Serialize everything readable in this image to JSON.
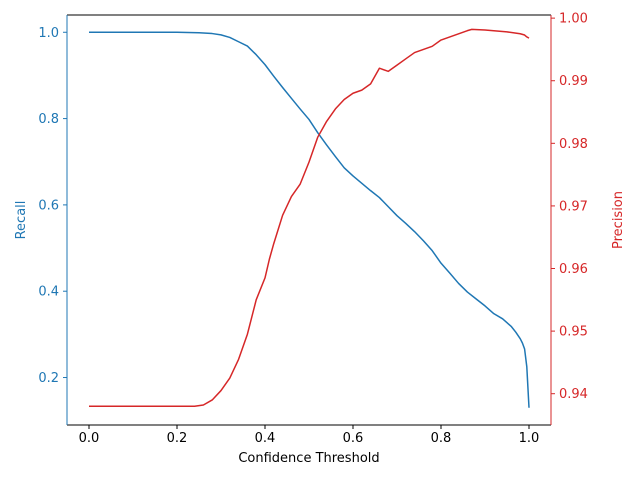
{
  "chart_data": {
    "type": "line",
    "xlabel": "Confidence Threshold",
    "ylabel_left": "Recall",
    "ylabel_right": "Precision",
    "xlim": [
      -0.05,
      1.05
    ],
    "ylim_left": [
      0.09,
      1.04
    ],
    "ylim_right": [
      0.935,
      1.0005
    ],
    "x_ticks": [
      0.0,
      0.2,
      0.4,
      0.6,
      0.8,
      1.0
    ],
    "x_tick_labels": [
      "0.0",
      "0.2",
      "0.4",
      "0.6",
      "0.8",
      "1.0"
    ],
    "left_ticks": [
      0.2,
      0.4,
      0.6,
      0.8,
      1.0
    ],
    "left_tick_labels": [
      "0.2",
      "0.4",
      "0.6",
      "0.8",
      "1.0"
    ],
    "right_ticks": [
      0.94,
      0.95,
      0.96,
      0.97,
      0.98,
      0.99,
      1.0
    ],
    "right_tick_labels": [
      "0.94",
      "0.95",
      "0.96",
      "0.97",
      "0.98",
      "0.99",
      "1.00"
    ],
    "grid": false,
    "colors": {
      "recall": "#1f77b4",
      "precision": "#d62728",
      "axis": "#000000"
    },
    "series": [
      {
        "axis": "left",
        "x": [
          0.0,
          0.1,
          0.2,
          0.25,
          0.28,
          0.3,
          0.32,
          0.34,
          0.36,
          0.38,
          0.4,
          0.42,
          0.44,
          0.46,
          0.48,
          0.5,
          0.52,
          0.54,
          0.56,
          0.58,
          0.6,
          0.62,
          0.64,
          0.66,
          0.68,
          0.7,
          0.72,
          0.74,
          0.76,
          0.78,
          0.8,
          0.82,
          0.84,
          0.86,
          0.88,
          0.9,
          0.92,
          0.94,
          0.95,
          0.96,
          0.97,
          0.98,
          0.985,
          0.99,
          0.995,
          1.0
        ],
        "y": [
          1.0,
          1.0,
          1.0,
          0.999,
          0.997,
          0.994,
          0.988,
          0.978,
          0.968,
          0.948,
          0.925,
          0.898,
          0.872,
          0.847,
          0.822,
          0.798,
          0.767,
          0.739,
          0.712,
          0.686,
          0.667,
          0.65,
          0.633,
          0.617,
          0.596,
          0.575,
          0.557,
          0.538,
          0.517,
          0.494,
          0.465,
          0.442,
          0.418,
          0.398,
          0.382,
          0.366,
          0.348,
          0.336,
          0.327,
          0.318,
          0.305,
          0.29,
          0.28,
          0.266,
          0.225,
          0.13
        ]
      },
      {
        "axis": "right",
        "x": [
          0.0,
          0.1,
          0.2,
          0.24,
          0.26,
          0.28,
          0.3,
          0.32,
          0.34,
          0.36,
          0.38,
          0.4,
          0.41,
          0.42,
          0.44,
          0.46,
          0.48,
          0.5,
          0.52,
          0.54,
          0.56,
          0.58,
          0.6,
          0.62,
          0.64,
          0.66,
          0.68,
          0.7,
          0.72,
          0.74,
          0.76,
          0.78,
          0.8,
          0.82,
          0.84,
          0.86,
          0.87,
          0.9,
          0.95,
          0.98,
          0.99,
          0.995,
          1.0
        ],
        "y": [
          0.938,
          0.938,
          0.938,
          0.938,
          0.9382,
          0.939,
          0.9405,
          0.9425,
          0.9455,
          0.9495,
          0.955,
          0.9585,
          0.9615,
          0.964,
          0.9685,
          0.9715,
          0.9735,
          0.977,
          0.981,
          0.9835,
          0.9855,
          0.987,
          0.988,
          0.9885,
          0.9895,
          0.992,
          0.9915,
          0.9925,
          0.9935,
          0.9945,
          0.995,
          0.9955,
          0.9965,
          0.997,
          0.9975,
          0.998,
          0.9982,
          0.9981,
          0.9978,
          0.9975,
          0.9973,
          0.997,
          0.9968
        ]
      }
    ]
  }
}
